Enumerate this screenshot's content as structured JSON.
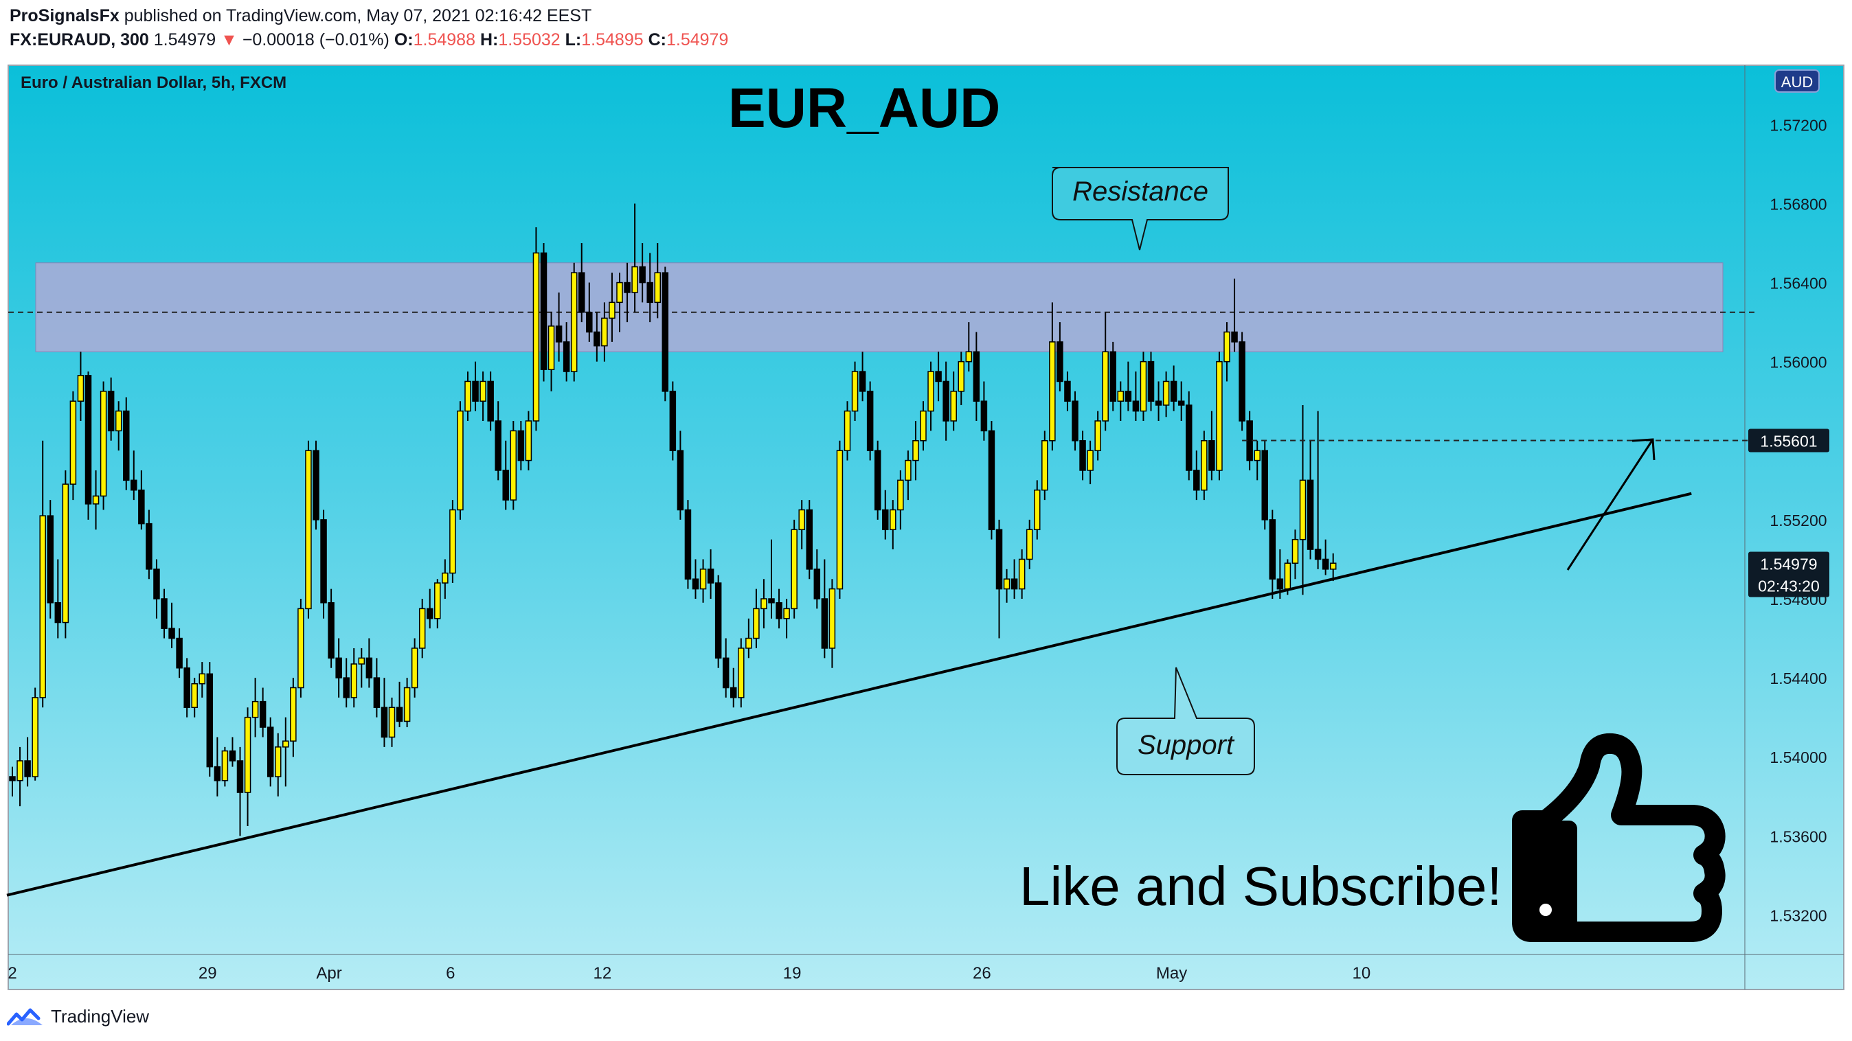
{
  "header": {
    "publisher": "ProSignalsFx",
    "published_text": "published on TradingView.com, May 07, 2021 02:16:42 EEST",
    "symbol": "FX:EURAUD, 300",
    "last": "1.54979",
    "change_arrow": "▼",
    "change": "−0.00018 (−0.01%)",
    "o_label": "O:",
    "o_value": "1.54988",
    "h_label": "H:",
    "h_value": "1.55032",
    "l_label": "L:",
    "l_value": "1.54895",
    "c_label": "C:",
    "c_value": "1.54979"
  },
  "chart_data": {
    "type": "candlestick",
    "instrument_label": "Euro / Australian Dollar, 5h, FXCM",
    "title": "EUR_AUD",
    "currency_badge": "AUD",
    "y_ticks": [
      "1.57200",
      "1.56800",
      "1.56400",
      "1.56000",
      "1.55200",
      "1.54800",
      "1.54400",
      "1.54000",
      "1.53600",
      "1.53200"
    ],
    "ylim": [
      1.53,
      1.575
    ],
    "x_ticks": [
      {
        "label": "2",
        "index": 0
      },
      {
        "label": "29",
        "index": 25
      },
      {
        "label": "Apr",
        "index": 41
      },
      {
        "label": "6",
        "index": 57
      },
      {
        "label": "12",
        "index": 77
      },
      {
        "label": "19",
        "index": 102
      },
      {
        "label": "26",
        "index": 127
      },
      {
        "label": "May",
        "index": 152
      },
      {
        "label": "10",
        "index": 177
      }
    ],
    "bars_visible": 172,
    "price_labels": [
      {
        "value": 1.55601,
        "text": "1.55601",
        "style": "line"
      },
      {
        "value": 1.54979,
        "text": "1.54979",
        "countdown": "02:43:20",
        "style": "last"
      }
    ],
    "resistance_zone": {
      "low": 1.5605,
      "high": 1.565,
      "label": "Resistance"
    },
    "resistance_line": 1.5625,
    "support_trendline": {
      "from": {
        "index": 0,
        "price": 1.533
      },
      "to": {
        "index": 185,
        "price": 1.55
      },
      "label": "Support"
    },
    "target_level": 1.55601,
    "annotation": "Like and Subscribe!",
    "candles": [
      [
        1.539,
        1.5395,
        1.538,
        1.5388
      ],
      [
        1.5388,
        1.5405,
        1.5375,
        1.5398
      ],
      [
        1.5398,
        1.541,
        1.5385,
        1.539
      ],
      [
        1.539,
        1.5435,
        1.5388,
        1.543
      ],
      [
        1.543,
        1.556,
        1.5425,
        1.5522
      ],
      [
        1.5522,
        1.553,
        1.547,
        1.5478
      ],
      [
        1.5478,
        1.55,
        1.546,
        1.5468
      ],
      [
        1.5468,
        1.5545,
        1.546,
        1.5538
      ],
      [
        1.5538,
        1.5585,
        1.553,
        1.558
      ],
      [
        1.558,
        1.5605,
        1.557,
        1.5593
      ],
      [
        1.5593,
        1.5595,
        1.552,
        1.5528
      ],
      [
        1.5528,
        1.5545,
        1.5515,
        1.5532
      ],
      [
        1.5532,
        1.559,
        1.5525,
        1.5585
      ],
      [
        1.5585,
        1.5592,
        1.556,
        1.5565
      ],
      [
        1.5565,
        1.558,
        1.5555,
        1.5575
      ],
      [
        1.5575,
        1.5582,
        1.5535,
        1.554
      ],
      [
        1.554,
        1.5555,
        1.553,
        1.5535
      ],
      [
        1.5535,
        1.5545,
        1.5515,
        1.5518
      ],
      [
        1.5518,
        1.5525,
        1.549,
        1.5495
      ],
      [
        1.5495,
        1.55,
        1.547,
        1.548
      ],
      [
        1.548,
        1.5485,
        1.546,
        1.5465
      ],
      [
        1.5465,
        1.5478,
        1.5455,
        1.546
      ],
      [
        1.546,
        1.5465,
        1.544,
        1.5445
      ],
      [
        1.5445,
        1.545,
        1.542,
        1.5425
      ],
      [
        1.5425,
        1.544,
        1.542,
        1.5437
      ],
      [
        1.5437,
        1.5448,
        1.543,
        1.5442
      ],
      [
        1.5442,
        1.5448,
        1.539,
        1.5395
      ],
      [
        1.5395,
        1.541,
        1.538,
        1.5388
      ],
      [
        1.5388,
        1.5405,
        1.5385,
        1.5403
      ],
      [
        1.5403,
        1.541,
        1.5395,
        1.5398
      ],
      [
        1.5398,
        1.5405,
        1.536,
        1.5382
      ],
      [
        1.5382,
        1.5425,
        1.5365,
        1.542
      ],
      [
        1.542,
        1.544,
        1.541,
        1.5428
      ],
      [
        1.5428,
        1.5435,
        1.541,
        1.5415
      ],
      [
        1.5415,
        1.542,
        1.5385,
        1.539
      ],
      [
        1.539,
        1.5412,
        1.538,
        1.5405
      ],
      [
        1.5405,
        1.542,
        1.5385,
        1.5408
      ],
      [
        1.5408,
        1.544,
        1.54,
        1.5435
      ],
      [
        1.5435,
        1.548,
        1.543,
        1.5475
      ],
      [
        1.5475,
        1.556,
        1.547,
        1.5555
      ],
      [
        1.5555,
        1.556,
        1.5515,
        1.552
      ],
      [
        1.552,
        1.5525,
        1.547,
        1.5478
      ],
      [
        1.5478,
        1.5485,
        1.5445,
        1.545
      ],
      [
        1.545,
        1.546,
        1.543,
        1.544
      ],
      [
        1.544,
        1.545,
        1.5425,
        1.543
      ],
      [
        1.543,
        1.5455,
        1.5425,
        1.5447
      ],
      [
        1.5447,
        1.5455,
        1.5435,
        1.545
      ],
      [
        1.545,
        1.546,
        1.5435,
        1.544
      ],
      [
        1.544,
        1.545,
        1.542,
        1.5425
      ],
      [
        1.5425,
        1.544,
        1.5405,
        1.541
      ],
      [
        1.541,
        1.543,
        1.5405,
        1.5425
      ],
      [
        1.5425,
        1.5438,
        1.5415,
        1.5418
      ],
      [
        1.5418,
        1.544,
        1.5415,
        1.5435
      ],
      [
        1.5435,
        1.546,
        1.543,
        1.5455
      ],
      [
        1.5455,
        1.548,
        1.545,
        1.5475
      ],
      [
        1.5475,
        1.5485,
        1.5465,
        1.547
      ],
      [
        1.547,
        1.549,
        1.5465,
        1.5488
      ],
      [
        1.5488,
        1.55,
        1.548,
        1.5493
      ],
      [
        1.5493,
        1.553,
        1.5488,
        1.5525
      ],
      [
        1.5525,
        1.558,
        1.552,
        1.5575
      ],
      [
        1.5575,
        1.5595,
        1.557,
        1.559
      ],
      [
        1.559,
        1.56,
        1.5575,
        1.558
      ],
      [
        1.558,
        1.5595,
        1.557,
        1.559
      ],
      [
        1.559,
        1.5595,
        1.5565,
        1.557
      ],
      [
        1.557,
        1.558,
        1.554,
        1.5545
      ],
      [
        1.5545,
        1.556,
        1.5525,
        1.553
      ],
      [
        1.553,
        1.557,
        1.5525,
        1.5565
      ],
      [
        1.5565,
        1.557,
        1.5545,
        1.555
      ],
      [
        1.555,
        1.5575,
        1.5545,
        1.557
      ],
      [
        1.557,
        1.5668,
        1.5565,
        1.5655
      ],
      [
        1.5655,
        1.566,
        1.559,
        1.5596
      ],
      [
        1.5596,
        1.5625,
        1.5585,
        1.5618
      ],
      [
        1.5618,
        1.5635,
        1.56,
        1.561
      ],
      [
        1.561,
        1.562,
        1.559,
        1.5595
      ],
      [
        1.5595,
        1.565,
        1.559,
        1.5645
      ],
      [
        1.5645,
        1.566,
        1.562,
        1.5625
      ],
      [
        1.5625,
        1.564,
        1.561,
        1.5615
      ],
      [
        1.5615,
        1.5625,
        1.56,
        1.5608
      ],
      [
        1.5608,
        1.563,
        1.56,
        1.5622
      ],
      [
        1.5622,
        1.5645,
        1.561,
        1.563
      ],
      [
        1.563,
        1.5645,
        1.5615,
        1.564
      ],
      [
        1.564,
        1.565,
        1.562,
        1.5635
      ],
      [
        1.5635,
        1.568,
        1.5625,
        1.5648
      ],
      [
        1.5648,
        1.566,
        1.563,
        1.564
      ],
      [
        1.564,
        1.5655,
        1.562,
        1.563
      ],
      [
        1.563,
        1.566,
        1.5622,
        1.5645
      ],
      [
        1.5645,
        1.5648,
        1.558,
        1.5585
      ],
      [
        1.5585,
        1.559,
        1.555,
        1.5555
      ],
      [
        1.5555,
        1.5565,
        1.552,
        1.5525
      ],
      [
        1.5525,
        1.553,
        1.5485,
        1.549
      ],
      [
        1.549,
        1.55,
        1.548,
        1.5485
      ],
      [
        1.5485,
        1.55,
        1.5478,
        1.5495
      ],
      [
        1.5495,
        1.5505,
        1.548,
        1.5488
      ],
      [
        1.5488,
        1.5492,
        1.5445,
        1.545
      ],
      [
        1.545,
        1.546,
        1.543,
        1.5435
      ],
      [
        1.5435,
        1.5445,
        1.5425,
        1.543
      ],
      [
        1.543,
        1.546,
        1.5425,
        1.5455
      ],
      [
        1.5455,
        1.547,
        1.545,
        1.546
      ],
      [
        1.546,
        1.5485,
        1.5455,
        1.5475
      ],
      [
        1.5475,
        1.549,
        1.5465,
        1.548
      ],
      [
        1.548,
        1.551,
        1.547,
        1.5478
      ],
      [
        1.5478,
        1.5485,
        1.5465,
        1.547
      ],
      [
        1.547,
        1.548,
        1.546,
        1.5475
      ],
      [
        1.5475,
        1.552,
        1.547,
        1.5515
      ],
      [
        1.5515,
        1.553,
        1.5505,
        1.5525
      ],
      [
        1.5525,
        1.553,
        1.549,
        1.5495
      ],
      [
        1.5495,
        1.5505,
        1.5475,
        1.548
      ],
      [
        1.548,
        1.55,
        1.545,
        1.5455
      ],
      [
        1.5455,
        1.549,
        1.5445,
        1.5485
      ],
      [
        1.5485,
        1.556,
        1.548,
        1.5555
      ],
      [
        1.5555,
        1.558,
        1.555,
        1.5575
      ],
      [
        1.5575,
        1.56,
        1.557,
        1.5595
      ],
      [
        1.5595,
        1.5605,
        1.558,
        1.5585
      ],
      [
        1.5585,
        1.559,
        1.555,
        1.5555
      ],
      [
        1.5555,
        1.556,
        1.552,
        1.5525
      ],
      [
        1.5525,
        1.5535,
        1.551,
        1.5515
      ],
      [
        1.5515,
        1.553,
        1.5505,
        1.5525
      ],
      [
        1.5525,
        1.5545,
        1.5515,
        1.554
      ],
      [
        1.554,
        1.5555,
        1.553,
        1.555
      ],
      [
        1.555,
        1.557,
        1.554,
        1.556
      ],
      [
        1.556,
        1.558,
        1.5555,
        1.5575
      ],
      [
        1.5575,
        1.56,
        1.5565,
        1.5595
      ],
      [
        1.5595,
        1.5605,
        1.558,
        1.559
      ],
      [
        1.559,
        1.56,
        1.556,
        1.557
      ],
      [
        1.557,
        1.5595,
        1.5565,
        1.5585
      ],
      [
        1.5585,
        1.5605,
        1.5578,
        1.56
      ],
      [
        1.56,
        1.562,
        1.5595,
        1.5605
      ],
      [
        1.5605,
        1.5615,
        1.557,
        1.558
      ],
      [
        1.558,
        1.559,
        1.556,
        1.5565
      ],
      [
        1.5565,
        1.557,
        1.551,
        1.5515
      ],
      [
        1.5515,
        1.552,
        1.546,
        1.5485
      ],
      [
        1.5485,
        1.5495,
        1.5478,
        1.549
      ],
      [
        1.549,
        1.55,
        1.548,
        1.5485
      ],
      [
        1.5485,
        1.5505,
        1.548,
        1.55
      ],
      [
        1.55,
        1.552,
        1.5495,
        1.5515
      ],
      [
        1.5515,
        1.554,
        1.551,
        1.5535
      ],
      [
        1.5535,
        1.5565,
        1.553,
        1.556
      ],
      [
        1.556,
        1.563,
        1.5555,
        1.561
      ],
      [
        1.561,
        1.562,
        1.5585,
        1.559
      ],
      [
        1.559,
        1.5595,
        1.5575,
        1.558
      ],
      [
        1.558,
        1.5585,
        1.5555,
        1.556
      ],
      [
        1.556,
        1.5565,
        1.554,
        1.5545
      ],
      [
        1.5545,
        1.556,
        1.5538,
        1.5555
      ],
      [
        1.5555,
        1.5575,
        1.555,
        1.557
      ],
      [
        1.557,
        1.5625,
        1.5565,
        1.5605
      ],
      [
        1.5605,
        1.561,
        1.5575,
        1.558
      ],
      [
        1.558,
        1.559,
        1.557,
        1.5585
      ],
      [
        1.5585,
        1.56,
        1.5575,
        1.558
      ],
      [
        1.558,
        1.5595,
        1.557,
        1.5575
      ],
      [
        1.5575,
        1.5605,
        1.557,
        1.56
      ],
      [
        1.56,
        1.5605,
        1.5575,
        1.558
      ],
      [
        1.558,
        1.559,
        1.557,
        1.5578
      ],
      [
        1.5578,
        1.5595,
        1.5572,
        1.559
      ],
      [
        1.559,
        1.5598,
        1.5575,
        1.558
      ],
      [
        1.558,
        1.559,
        1.557,
        1.5578
      ],
      [
        1.5578,
        1.5585,
        1.554,
        1.5545
      ],
      [
        1.5545,
        1.5555,
        1.553,
        1.5535
      ],
      [
        1.5535,
        1.5565,
        1.553,
        1.556
      ],
      [
        1.556,
        1.5575,
        1.554,
        1.5545
      ],
      [
        1.5545,
        1.5605,
        1.554,
        1.56
      ],
      [
        1.56,
        1.562,
        1.559,
        1.5615
      ],
      [
        1.5615,
        1.5642,
        1.5605,
        1.561
      ],
      [
        1.561,
        1.5615,
        1.5565,
        1.557
      ],
      [
        1.557,
        1.5575,
        1.5545,
        1.555
      ],
      [
        1.555,
        1.556,
        1.554,
        1.5555
      ],
      [
        1.5555,
        1.556,
        1.5515,
        1.552
      ],
      [
        1.552,
        1.5525,
        1.548,
        1.549
      ],
      [
        1.549,
        1.5505,
        1.548,
        1.5485
      ],
      [
        1.5485,
        1.55,
        1.5482,
        1.5498
      ],
      [
        1.5498,
        1.5515,
        1.549,
        1.551
      ],
      [
        1.551,
        1.5578,
        1.5482,
        1.554
      ],
      [
        1.554,
        1.556,
        1.55,
        1.5505
      ],
      [
        1.5505,
        1.5575,
        1.5495,
        1.55
      ],
      [
        1.55,
        1.551,
        1.5492,
        1.5495
      ],
      [
        1.5495,
        1.5503,
        1.5489,
        1.5498
      ]
    ]
  },
  "footer": {
    "brand": "TradingView"
  }
}
